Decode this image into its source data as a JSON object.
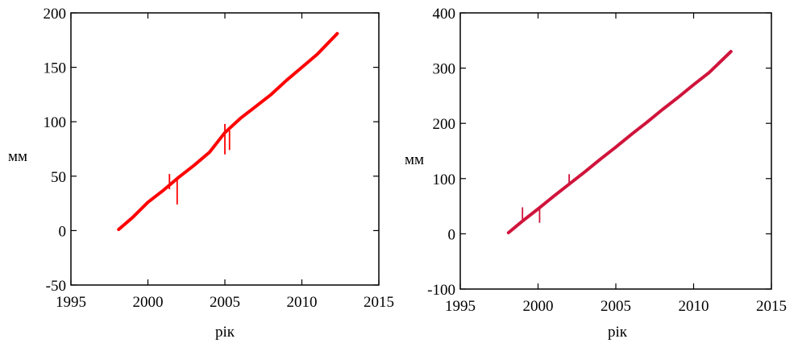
{
  "chart_data": [
    {
      "type": "line",
      "title": "",
      "xlabel": "рік",
      "ylabel": "мм",
      "xlim": [
        1995,
        2015
      ],
      "ylim": [
        -50,
        200
      ],
      "xticks": [
        1995,
        2000,
        2005,
        2010,
        2015
      ],
      "yticks": [
        -50,
        0,
        50,
        100,
        150,
        200
      ],
      "xtick_labels": [
        "1995",
        "2000",
        "2005",
        "2010",
        "2015"
      ],
      "ytick_labels": [
        "-50",
        "0",
        "50",
        "100",
        "150",
        "200"
      ],
      "grid": false,
      "color": "#ff0000",
      "series": [
        {
          "x": [
            1998.1,
            1999.0,
            2000.0,
            2001.0,
            2002.0,
            2003.0,
            2004.0,
            2005.0,
            2006.0,
            2007.0,
            2008.0,
            2009.0,
            2010.0,
            2011.0,
            2012.3
          ],
          "values": [
            1,
            12,
            26,
            37,
            49,
            60,
            72,
            90,
            103,
            114,
            125,
            138,
            150,
            162,
            181
          ]
        }
      ],
      "spikes": [
        {
          "x": 2001.4,
          "values": [
            38,
            52
          ]
        },
        {
          "x": 2001.9,
          "values": [
            24,
            48
          ]
        },
        {
          "x": 2005.0,
          "values": [
            70,
            98
          ]
        },
        {
          "x": 2005.3,
          "values": [
            74,
            92
          ]
        }
      ]
    },
    {
      "type": "line",
      "title": "",
      "xlabel": "рік",
      "ylabel": "мм",
      "xlim": [
        1995,
        2015
      ],
      "ylim": [
        -100,
        400
      ],
      "xticks": [
        1995,
        2000,
        2005,
        2010,
        2015
      ],
      "yticks": [
        -100,
        0,
        100,
        200,
        300,
        400
      ],
      "xtick_labels": [
        "1995",
        "2000",
        "2005",
        "2010",
        "2015"
      ],
      "ytick_labels": [
        "-100",
        "0",
        "100",
        "200",
        "300",
        "400"
      ],
      "grid": false,
      "color": "#d0143c",
      "series": [
        {
          "x": [
            1998.1,
            1999.0,
            2000.0,
            2001.0,
            2002.0,
            2003.0,
            2004.0,
            2005.0,
            2006.0,
            2007.0,
            2008.0,
            2009.0,
            2010.0,
            2011.0,
            2012.4
          ],
          "values": [
            2,
            23,
            45,
            68,
            90,
            112,
            135,
            157,
            180,
            202,
            225,
            247,
            270,
            292,
            330
          ]
        }
      ],
      "spikes": [
        {
          "x": 1999.0,
          "values": [
            22,
            48
          ]
        },
        {
          "x": 2000.1,
          "values": [
            20,
            45
          ]
        },
        {
          "x": 2002.0,
          "values": [
            90,
            108
          ]
        }
      ]
    }
  ]
}
